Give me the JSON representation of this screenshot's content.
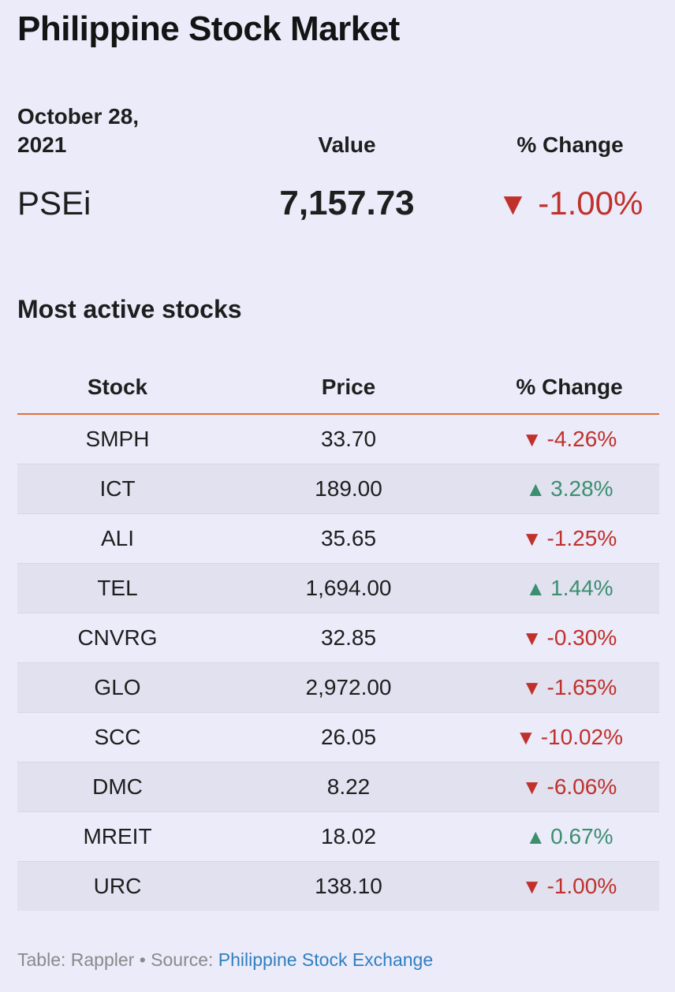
{
  "header": {
    "title": "Philippine Stock Market"
  },
  "summary": {
    "date_label": "October 28, 2021",
    "value_header": "Value",
    "change_header": "% Change",
    "index_name": "PSEi",
    "index_value": "7,157.73",
    "index_change": "-1.00%",
    "index_direction": "down"
  },
  "most_active": {
    "title": "Most active stocks",
    "columns": {
      "stock": "Stock",
      "price": "Price",
      "change": "% Change"
    },
    "rows": [
      {
        "stock": "SMPH",
        "price": "33.70",
        "change": "-4.26%",
        "direction": "down"
      },
      {
        "stock": "ICT",
        "price": "189.00",
        "change": "3.28%",
        "direction": "up"
      },
      {
        "stock": "ALI",
        "price": "35.65",
        "change": "-1.25%",
        "direction": "down"
      },
      {
        "stock": "TEL",
        "price": "1,694.00",
        "change": "1.44%",
        "direction": "up"
      },
      {
        "stock": "CNVRG",
        "price": "32.85",
        "change": "-0.30%",
        "direction": "down"
      },
      {
        "stock": "GLO",
        "price": "2,972.00",
        "change": "-1.65%",
        "direction": "down"
      },
      {
        "stock": "SCC",
        "price": "26.05",
        "change": "-10.02%",
        "direction": "down"
      },
      {
        "stock": "DMC",
        "price": "8.22",
        "change": "-6.06%",
        "direction": "down"
      },
      {
        "stock": "MREIT",
        "price": "18.02",
        "change": "0.67%",
        "direction": "up"
      },
      {
        "stock": "URC",
        "price": "138.10",
        "change": "-1.00%",
        "direction": "down"
      }
    ]
  },
  "footer": {
    "credit": "Table: Rappler • Source: ",
    "source_link": "Philippine Stock Exchange"
  },
  "colors": {
    "background": "#ebebfa",
    "down": "#c0312b",
    "up": "#3b8f6e",
    "header_rule": "#e0703a",
    "link": "#2f7fc1"
  },
  "icons": {
    "down": "triangle-down-icon",
    "up": "triangle-up-icon"
  }
}
